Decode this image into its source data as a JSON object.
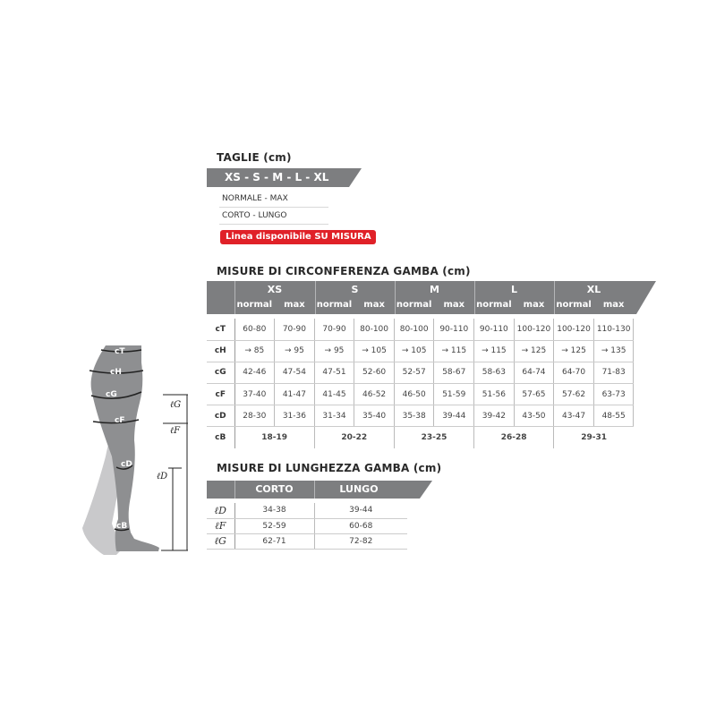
{
  "sizes_section": {
    "title": "TAGLIE (cm)",
    "banner": "XS - S - M - L - XL",
    "options": [
      "NORMALE - MAX",
      "CORTO - LUNGO"
    ],
    "custom_badge": "Linea disponibile SU MISURA",
    "badge_color": "#e02128"
  },
  "circumference": {
    "title": "MISURE DI CIRCONFERENZA GAMBA (cm)",
    "sizes": [
      "XS",
      "S",
      "M",
      "L",
      "XL"
    ],
    "subcols": [
      "normal",
      "max"
    ],
    "rows": [
      {
        "label": "cT",
        "values": [
          "60-80",
          "70-90",
          "70-90",
          "80-100",
          "80-100",
          "90-110",
          "90-110",
          "100-120",
          "100-120",
          "110-130"
        ]
      },
      {
        "label": "cH",
        "values": [
          "→ 85",
          "→ 95",
          "→ 95",
          "→ 105",
          "→ 105",
          "→ 115",
          "→ 115",
          "→ 125",
          "→ 125",
          "→ 135"
        ]
      },
      {
        "label": "cG",
        "values": [
          "42-46",
          "47-54",
          "47-51",
          "52-60",
          "52-57",
          "58-67",
          "58-63",
          "64-74",
          "64-70",
          "71-83"
        ]
      },
      {
        "label": "cF",
        "values": [
          "37-40",
          "41-47",
          "41-45",
          "46-52",
          "46-50",
          "51-59",
          "51-56",
          "57-65",
          "57-62",
          "63-73"
        ]
      },
      {
        "label": "cD",
        "values": [
          "28-30",
          "31-36",
          "31-34",
          "35-40",
          "35-38",
          "39-44",
          "39-42",
          "43-50",
          "43-47",
          "48-55"
        ]
      }
    ],
    "cB": {
      "label": "cB",
      "values": [
        "18-19",
        "20-22",
        "23-25",
        "26-28",
        "29-31"
      ]
    }
  },
  "length": {
    "title": "MISURE DI LUNGHEZZA GAMBA (cm)",
    "columns": [
      "CORTO",
      "LUNGO"
    ],
    "rows": [
      {
        "label": "ℓD",
        "values": [
          "34-38",
          "39-44"
        ]
      },
      {
        "label": "ℓF",
        "values": [
          "52-59",
          "60-68"
        ]
      },
      {
        "label": "ℓG",
        "values": [
          "62-71",
          "72-82"
        ]
      }
    ]
  },
  "figure": {
    "circ_labels": [
      "cT",
      "cH",
      "cG",
      "cF",
      "cD",
      "cB"
    ],
    "length_labels": [
      "ℓG",
      "ℓF",
      "ℓD"
    ]
  }
}
